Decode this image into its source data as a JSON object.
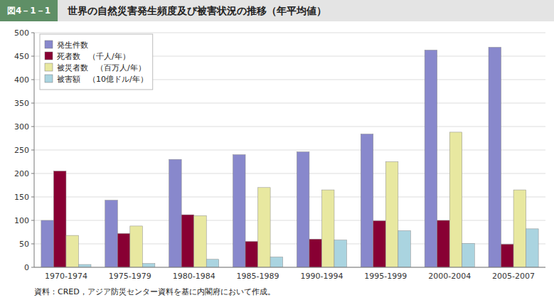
{
  "chart_data": {
    "type": "bar",
    "title": "世界の自然災害発生頻度及び被害状況の推移（年平均値）",
    "subtitle": "図4－1－1",
    "annotations": [
      "資料：CRED，アジア防災センター資料を基に内閣府において作成。"
    ],
    "categories": [
      "1970-1974",
      "1975-1979",
      "1980-1984",
      "1985-1989",
      "1990-1994",
      "1995-1999",
      "2000-2004",
      "2005-2007"
    ],
    "series": [
      {
        "name": "発生件数",
        "color": "#8888cc",
        "values": [
          100,
          143,
          230,
          240,
          246,
          284,
          463,
          469
        ]
      },
      {
        "name": "死者数　（千人/年）",
        "color": "#880033",
        "values": [
          205,
          72,
          112,
          55,
          60,
          99,
          100,
          49
        ]
      },
      {
        "name": "被災者数　（百万人/年）",
        "color": "#e8e8a0",
        "values": [
          68,
          88,
          110,
          170,
          165,
          225,
          288,
          165
        ]
      },
      {
        "name": "被害額　（10億ドル/年）",
        "color": "#aad4e0",
        "values": [
          6,
          8,
          17,
          22,
          58,
          78,
          51,
          82
        ]
      }
    ],
    "ylim": [
      0,
      500
    ],
    "yticks": [
      0,
      50,
      100,
      150,
      200,
      250,
      300,
      350,
      400,
      450,
      500
    ],
    "grid": true,
    "legend": "upper-left"
  }
}
